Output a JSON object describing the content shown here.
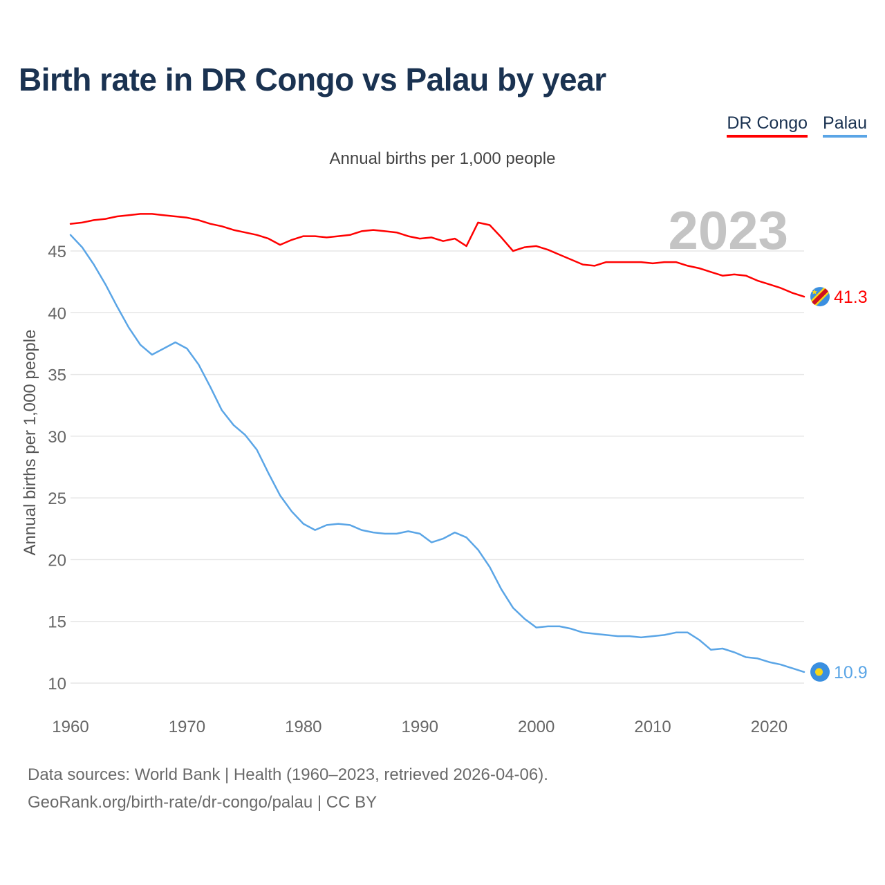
{
  "chart_data": {
    "type": "line",
    "title": "Birth rate in DR Congo vs Palau by year",
    "subtitle": "Annual births per 1,000 people",
    "ylabel": "Annual births per 1,000 people",
    "xlabel": "",
    "year_label": "2023",
    "x_range": [
      1960,
      2023
    ],
    "ylim": [
      10,
      47.5
    ],
    "x_ticks": [
      1960,
      1970,
      1980,
      1990,
      2000,
      2010,
      2020
    ],
    "y_ticks": [
      10,
      15,
      20,
      25,
      30,
      35,
      40,
      45
    ],
    "grid": true,
    "legend_position": "top-right",
    "series": [
      {
        "name": "DR Congo",
        "color": "#ff0000",
        "end_label": "41.3",
        "flag_icon": "dr-congo-flag-icon",
        "x": [
          1960,
          1961,
          1962,
          1963,
          1964,
          1965,
          1966,
          1967,
          1968,
          1969,
          1970,
          1971,
          1972,
          1973,
          1974,
          1975,
          1976,
          1977,
          1978,
          1979,
          1980,
          1981,
          1982,
          1983,
          1984,
          1985,
          1986,
          1987,
          1988,
          1989,
          1990,
          1991,
          1992,
          1993,
          1994,
          1995,
          1996,
          1997,
          1998,
          1999,
          2000,
          2001,
          2002,
          2003,
          2004,
          2005,
          2006,
          2007,
          2008,
          2009,
          2010,
          2011,
          2012,
          2013,
          2014,
          2015,
          2016,
          2017,
          2018,
          2019,
          2020,
          2021,
          2022,
          2023
        ],
        "values": [
          47.2,
          47.3,
          47.5,
          47.6,
          47.8,
          47.9,
          48.0,
          48.0,
          47.9,
          47.8,
          47.7,
          47.5,
          47.2,
          47.0,
          46.7,
          46.5,
          46.3,
          46.0,
          45.5,
          45.9,
          46.2,
          46.2,
          46.1,
          46.2,
          46.3,
          46.6,
          46.7,
          46.6,
          46.5,
          46.2,
          46.0,
          46.1,
          45.8,
          46.0,
          45.4,
          47.3,
          47.1,
          46.1,
          45.0,
          45.3,
          45.4,
          45.1,
          44.7,
          44.3,
          43.9,
          43.8,
          44.1,
          44.1,
          44.1,
          44.1,
          44.0,
          44.1,
          44.1,
          43.8,
          43.6,
          43.3,
          43.0,
          43.1,
          43.0,
          42.6,
          42.3,
          42.0,
          41.6,
          41.3
        ]
      },
      {
        "name": "Palau",
        "color": "#5aa5e6",
        "end_label": "10.9",
        "flag_icon": "palau-flag-icon",
        "x": [
          1960,
          1961,
          1962,
          1963,
          1964,
          1965,
          1966,
          1967,
          1968,
          1969,
          1970,
          1971,
          1972,
          1973,
          1974,
          1975,
          1976,
          1977,
          1978,
          1979,
          1980,
          1981,
          1982,
          1983,
          1984,
          1985,
          1986,
          1987,
          1988,
          1989,
          1990,
          1991,
          1992,
          1993,
          1994,
          1995,
          1996,
          1997,
          1998,
          1999,
          2000,
          2001,
          2002,
          2003,
          2004,
          2005,
          2006,
          2007,
          2008,
          2009,
          2010,
          2011,
          2012,
          2013,
          2014,
          2015,
          2016,
          2017,
          2018,
          2019,
          2020,
          2021,
          2022,
          2023
        ],
        "values": [
          46.3,
          45.3,
          43.9,
          42.3,
          40.5,
          38.8,
          37.4,
          36.6,
          37.1,
          37.6,
          37.1,
          35.8,
          34.0,
          32.1,
          30.9,
          30.1,
          28.9,
          27.0,
          25.2,
          23.9,
          22.9,
          22.4,
          22.8,
          22.9,
          22.8,
          22.4,
          22.2,
          22.1,
          22.1,
          22.3,
          22.1,
          21.4,
          21.7,
          22.2,
          21.8,
          20.8,
          19.4,
          17.6,
          16.1,
          15.2,
          14.5,
          14.6,
          14.6,
          14.4,
          14.1,
          14.0,
          13.9,
          13.8,
          13.8,
          13.7,
          13.8,
          13.9,
          14.1,
          14.1,
          13.5,
          12.7,
          12.8,
          12.5,
          12.1,
          12.0,
          11.7,
          11.5,
          11.2,
          10.9
        ]
      }
    ]
  },
  "footer": {
    "source_line_1": "Data sources: World Bank | Health (1960–2023, retrieved 2026-04-06).",
    "source_line_2": "GeoRank.org/birth-rate/dr-congo/palau | CC BY"
  }
}
